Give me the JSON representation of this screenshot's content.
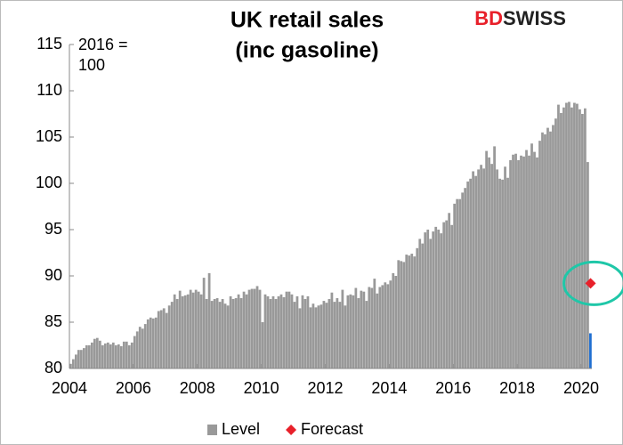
{
  "chart_data": {
    "type": "bar",
    "title": [
      "UK retail sales",
      "(inc gasoline)"
    ],
    "y_label": [
      "2016 =",
      "100"
    ],
    "logo": [
      "BD",
      "SWISS"
    ],
    "xlim": [
      2004,
      2020.333
    ],
    "xticks": [
      2004,
      2006,
      2008,
      2010,
      2012,
      2014,
      2016,
      2018,
      2020
    ],
    "ylim": [
      80,
      115
    ],
    "yticks": [
      80,
      85,
      90,
      95,
      100,
      105,
      110,
      115
    ],
    "grid": false,
    "legend": "bottom",
    "series": [
      {
        "name": "Level",
        "type": "bar",
        "color": "#999999",
        "x": [
          2004,
          2004.083,
          2004.167,
          2004.25,
          2004.333,
          2004.417,
          2004.5,
          2004.583,
          2004.667,
          2004.75,
          2004.833,
          2004.917,
          2005,
          2005.083,
          2005.167,
          2005.25,
          2005.333,
          2005.417,
          2005.5,
          2005.583,
          2005.667,
          2005.75,
          2005.833,
          2005.917,
          2006,
          2006.083,
          2006.167,
          2006.25,
          2006.333,
          2006.417,
          2006.5,
          2006.583,
          2006.667,
          2006.75,
          2006.833,
          2006.917,
          2007,
          2007.083,
          2007.167,
          2007.25,
          2007.333,
          2007.417,
          2007.5,
          2007.583,
          2007.667,
          2007.75,
          2007.833,
          2007.917,
          2008,
          2008.083,
          2008.167,
          2008.25,
          2008.333,
          2008.417,
          2008.5,
          2008.583,
          2008.667,
          2008.75,
          2008.833,
          2008.917,
          2009,
          2009.083,
          2009.167,
          2009.25,
          2009.333,
          2009.417,
          2009.5,
          2009.583,
          2009.667,
          2009.75,
          2009.833,
          2009.917,
          2010,
          2010.083,
          2010.167,
          2010.25,
          2010.333,
          2010.417,
          2010.5,
          2010.583,
          2010.667,
          2010.75,
          2010.833,
          2010.917,
          2011,
          2011.083,
          2011.167,
          2011.25,
          2011.333,
          2011.417,
          2011.5,
          2011.583,
          2011.667,
          2011.75,
          2011.833,
          2011.917,
          2012,
          2012.083,
          2012.167,
          2012.25,
          2012.333,
          2012.417,
          2012.5,
          2012.583,
          2012.667,
          2012.75,
          2012.833,
          2012.917,
          2013,
          2013.083,
          2013.167,
          2013.25,
          2013.333,
          2013.417,
          2013.5,
          2013.583,
          2013.667,
          2013.75,
          2013.833,
          2013.917,
          2014,
          2014.083,
          2014.167,
          2014.25,
          2014.333,
          2014.417,
          2014.5,
          2014.583,
          2014.667,
          2014.75,
          2014.833,
          2014.917,
          2015,
          2015.083,
          2015.167,
          2015.25,
          2015.333,
          2015.417,
          2015.5,
          2015.583,
          2015.667,
          2015.75,
          2015.833,
          2015.917,
          2016,
          2016.083,
          2016.167,
          2016.25,
          2016.333,
          2016.417,
          2016.5,
          2016.583,
          2016.667,
          2016.75,
          2016.833,
          2016.917,
          2017,
          2017.083,
          2017.167,
          2017.25,
          2017.333,
          2017.417,
          2017.5,
          2017.583,
          2017.667,
          2017.75,
          2017.833,
          2017.917,
          2018,
          2018.083,
          2018.167,
          2018.25,
          2018.333,
          2018.417,
          2018.5,
          2018.583,
          2018.667,
          2018.75,
          2018.833,
          2018.917,
          2019,
          2019.083,
          2019.167,
          2019.25,
          2019.333,
          2019.417,
          2019.5,
          2019.583,
          2019.667,
          2019.75,
          2019.833,
          2019.917,
          2020,
          2020.083,
          2020.167
        ],
        "values": [
          80.5,
          81.0,
          81.5,
          82.0,
          82.0,
          82.2,
          82.5,
          82.5,
          82.8,
          83.2,
          83.3,
          83.0,
          82.5,
          82.7,
          82.8,
          82.6,
          82.8,
          82.5,
          82.6,
          82.4,
          82.9,
          82.9,
          82.5,
          82.8,
          83.5,
          84.0,
          84.5,
          84.3,
          84.8,
          85.3,
          85.5,
          85.4,
          85.5,
          86.2,
          86.3,
          86.5,
          86.0,
          86.8,
          87.2,
          88.0,
          87.5,
          88.4,
          87.8,
          87.9,
          88.0,
          88.5,
          88.2,
          88.5,
          88.3,
          88.0,
          89.8,
          87.5,
          90.3,
          87.3,
          87.5,
          87.6,
          87.2,
          87.5,
          87.0,
          86.8,
          87.8,
          87.5,
          87.6,
          88.0,
          87.6,
          88.3,
          88.0,
          88.5,
          88.6,
          88.6,
          88.9,
          88.5,
          85.0,
          88.0,
          87.8,
          87.5,
          87.8,
          87.5,
          87.8,
          88.0,
          87.7,
          88.3,
          88.3,
          88.0,
          87.2,
          87.8,
          86.5,
          87.9,
          87.5,
          87.8,
          86.6,
          87.0,
          86.6,
          86.8,
          86.9,
          87.3,
          87.1,
          87.5,
          88.2,
          87.2,
          87.6,
          87.2,
          88.5,
          86.8,
          87.9,
          88.0,
          87.9,
          88.7,
          87.6,
          88.4,
          88.3,
          87.3,
          88.8,
          88.7,
          89.7,
          88.1,
          88.8,
          89.0,
          89.3,
          89.1,
          89.5,
          90.3,
          90.0,
          91.7,
          91.6,
          91.5,
          92.3,
          92.2,
          92.4,
          92.1,
          93.0,
          94.0,
          93.5,
          94.7,
          95.0,
          94.0,
          94.8,
          95.3,
          95.0,
          94.6,
          95.8,
          96.0,
          96.8,
          95.5,
          97.8,
          98.3,
          98.3,
          99.0,
          99.5,
          100.2,
          100.5,
          101.3,
          100.8,
          101.5,
          102.0,
          101.6,
          103.5,
          102.8,
          102.1,
          104.0,
          101.5,
          100.5,
          100.4,
          101.8,
          100.6,
          102.5,
          103.1,
          103.2,
          102.5,
          103.0,
          102.9,
          103.6,
          103.0,
          104.3,
          103.4,
          102.8,
          104.6,
          105.5,
          105.3,
          106.0,
          105.6,
          106.3,
          107.0,
          108.5,
          107.6,
          108.2,
          108.7,
          108.8,
          108.2,
          108.7,
          108.6,
          108.0,
          107.5,
          108.1,
          102.3
        ]
      },
      {
        "type": "bar",
        "color": "#1f6fd1",
        "x": [
          2020.25
        ],
        "values": [
          83.8
        ]
      },
      {
        "name": "Forecast",
        "type": "diamond",
        "color": "#e8202a",
        "x": [
          2020.25
        ],
        "values": [
          89.2
        ]
      }
    ]
  }
}
